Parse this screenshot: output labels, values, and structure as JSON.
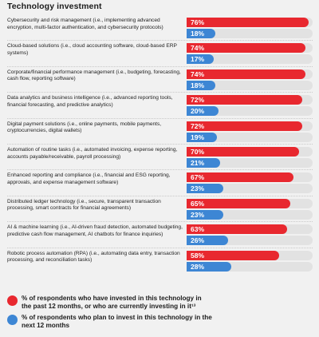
{
  "chart_data": {
    "type": "bar",
    "title": "Technology investment",
    "xlim": [
      0,
      100
    ],
    "categories": [
      "Cybersecurity and risk management (i.e., implementing advanced encryption, multi-factor authentication, and cybersecurity protocols)",
      "Cloud-based solutions (i.e., cloud accounting software, cloud-based ERP systems)",
      "Corporate/financial performance management (i.e., budgeting, forecasting, cash flow, reporting software)",
      "Data analytics and business intelligence (i.e., advanced reporting tools, financial forecasting, and predictive analytics)",
      "Digital payment solutions (i.e., online payments, mobile payments, cryptocurrencies, digital wallets)",
      "Automation of routine tasks (i.e., automated invoicing, expense reporting, accounts payable/receivable, payroll processing)",
      "Enhanced reporting and compliance (i.e., financial and ESG reporting, approvals, and expense management software)",
      "Distributed ledger technology (i.e., secure, transparent transaction processing, smart contracts for financial agreements)",
      "AI & machine learning (i.e., AI-driven fraud detection, automated budgeting, predictive cash flow management, AI chatbots for finance inquiries)",
      "Robotic process automation (RPA) (i.e., automating data entry, transaction processing, and reconciliation tasks)"
    ],
    "series": [
      {
        "name": "% of respondents who have invested in this technology in the past 12 months, or who are currently investing in it¹³",
        "color": "#e8282f",
        "values": [
          76,
          74,
          74,
          72,
          72,
          70,
          67,
          65,
          63,
          58
        ],
        "labels": [
          "76%",
          "74%",
          "74%",
          "72%",
          "72%",
          "70%",
          "67%",
          "65%",
          "63%",
          "58%"
        ]
      },
      {
        "name": "% of respondents who plan to invest in this technology in the next 12 months",
        "color": "#3d86d4",
        "values": [
          18,
          17,
          18,
          20,
          19,
          21,
          23,
          23,
          26,
          28
        ],
        "labels": [
          "18%",
          "17%",
          "18%",
          "20%",
          "19%",
          "21%",
          "23%",
          "23%",
          "26%",
          "28%"
        ]
      }
    ]
  }
}
